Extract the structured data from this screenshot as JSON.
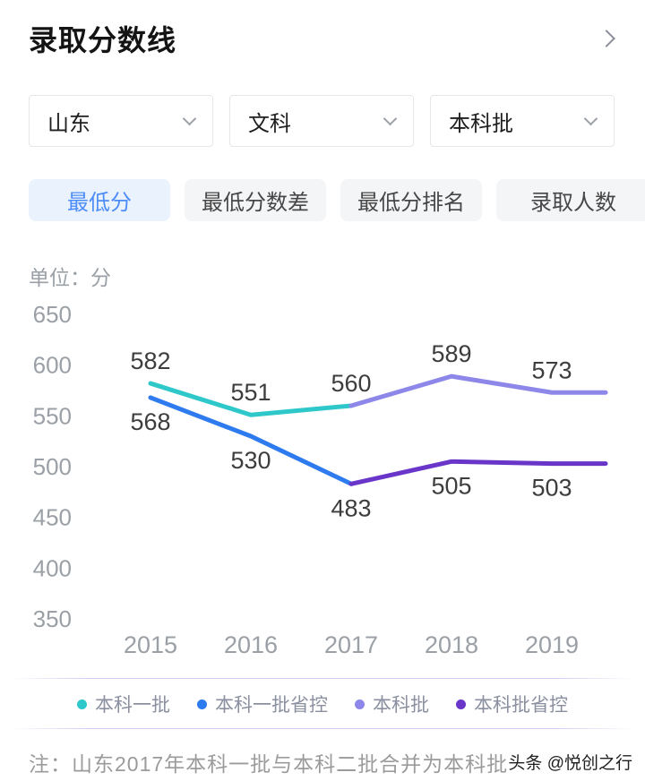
{
  "header": {
    "title": "录取分数线"
  },
  "filters": [
    {
      "value": "山东"
    },
    {
      "value": "文科"
    },
    {
      "value": "本科批"
    }
  ],
  "tabs": [
    {
      "label": "最低分",
      "active": true
    },
    {
      "label": "最低分数差",
      "active": false
    },
    {
      "label": "最低分排名",
      "active": false
    },
    {
      "label": "录取人数",
      "active": false
    }
  ],
  "unit_label": "单位：分",
  "chart_data": {
    "type": "line",
    "x": [
      "2015",
      "2016",
      "2017",
      "2018",
      "2019"
    ],
    "ylim": [
      350,
      650
    ],
    "yticks": [
      650,
      600,
      550,
      500,
      450,
      400,
      350
    ],
    "grid": false,
    "legend_position": "bottom",
    "series": [
      {
        "name": "本科一批",
        "color": "#2EC8CB",
        "values": [
          582,
          551,
          560,
          null,
          null
        ],
        "label_side": "above",
        "show_labels": [
          true,
          true,
          true,
          false,
          false
        ]
      },
      {
        "name": "本科一批省控",
        "color": "#2D7BEE",
        "values": [
          568,
          530,
          483,
          null,
          null
        ],
        "label_side": "below",
        "show_labels": [
          true,
          true,
          true,
          false,
          false
        ]
      },
      {
        "name": "本科批",
        "color": "#8C87E8",
        "values": [
          null,
          null,
          560,
          589,
          573
        ],
        "label_side": "above",
        "show_labels": [
          false,
          false,
          false,
          true,
          true
        ]
      },
      {
        "name": "本科批省控",
        "color": "#6936C9",
        "values": [
          null,
          null,
          483,
          505,
          503
        ],
        "label_side": "below",
        "show_labels": [
          false,
          false,
          false,
          true,
          true
        ]
      }
    ]
  },
  "note": "注：山东2017年本科一批与本科二批合并为本科批",
  "watermark": "头条 @悦创之行"
}
